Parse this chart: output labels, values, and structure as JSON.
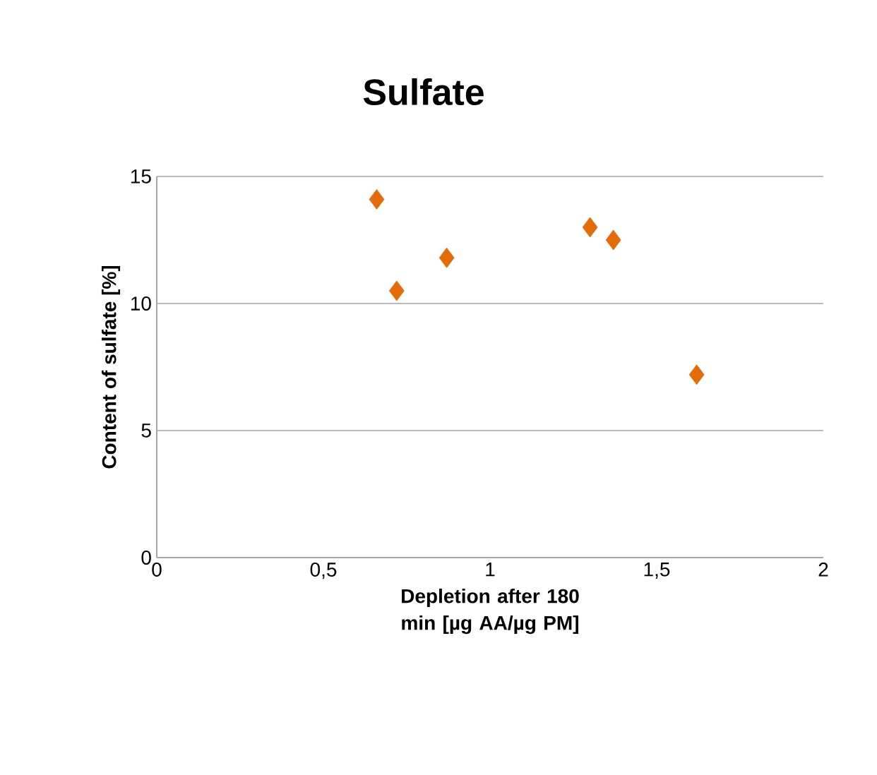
{
  "chart_data": {
    "type": "scatter",
    "title": "Sulfate",
    "xlabel": "Depletion after 180 min [µg AA/µg PM]",
    "ylabel": "Content of sulfate [%]",
    "x": [
      0.66,
      0.72,
      0.87,
      1.3,
      1.37,
      1.62
    ],
    "values": [
      14.1,
      10.5,
      11.8,
      13.0,
      12.5,
      7.2
    ],
    "color": "#e36c09",
    "marker": "diamond",
    "xlim": [
      0,
      2
    ],
    "ylim": [
      0,
      15
    ],
    "xticks": [
      0,
      {
        "value": 0.5,
        "label": "0,5"
      },
      1,
      {
        "value": 1.5,
        "label": "1,5"
      },
      2
    ],
    "yticks": [
      0,
      5,
      10,
      15
    ],
    "grid": "y"
  }
}
